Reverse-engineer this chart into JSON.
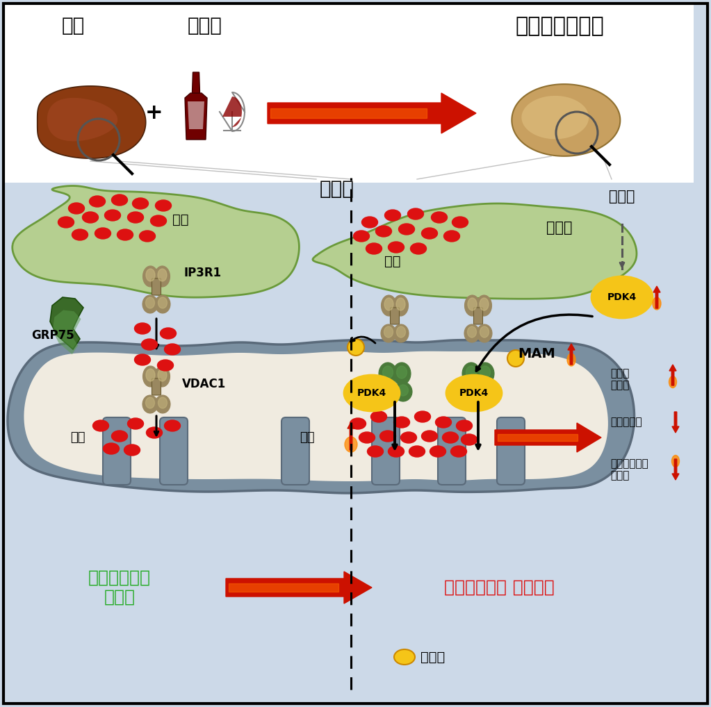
{
  "bg_color": "#ccd9e8",
  "top_bg": "#ffffff",
  "title_normal": "정상",
  "title_alcohol": "알코올",
  "title_disease": "알코올성간질환",
  "label_cell": "간세포",
  "label_er": "내막체",
  "label_alcohol_right": "알코올",
  "label_ip3r1": "IP3R1",
  "label_grp75": "GRP75",
  "label_vdac1": "VDAC1",
  "label_pdk4": "PDK4",
  "label_mam": "MAM",
  "label_calcium1": "칼슘",
  "label_calcium2": "칼슘",
  "label_calcium3": "칼슘",
  "label_calcium4": "칼슘",
  "label_mito_good": "미토콘드리아\n항상성",
  "label_mito_bad": "미토콘드리아 기능부전",
  "label_ros": "반응성\n산소종",
  "label_o2": "산소소모율",
  "label_membrane": "미토콘드리아\n막전위",
  "label_phospho": "인산화",
  "er_fill": "#b5cf90",
  "er_edge": "#6a9a3a",
  "mito_outer": "#7a8fa0",
  "mito_inner": "#f0ebe0",
  "pdk4_fill": "#f5c518",
  "pdk4_edge": "#cc8800",
  "calcium_red": "#dd1111",
  "channel_color": "#9a8860",
  "channel_light": "#c8b880",
  "green_protein": "#4a7a3a",
  "green_protein_light": "#5a9a4a",
  "grp75_color": "#3a6a28"
}
